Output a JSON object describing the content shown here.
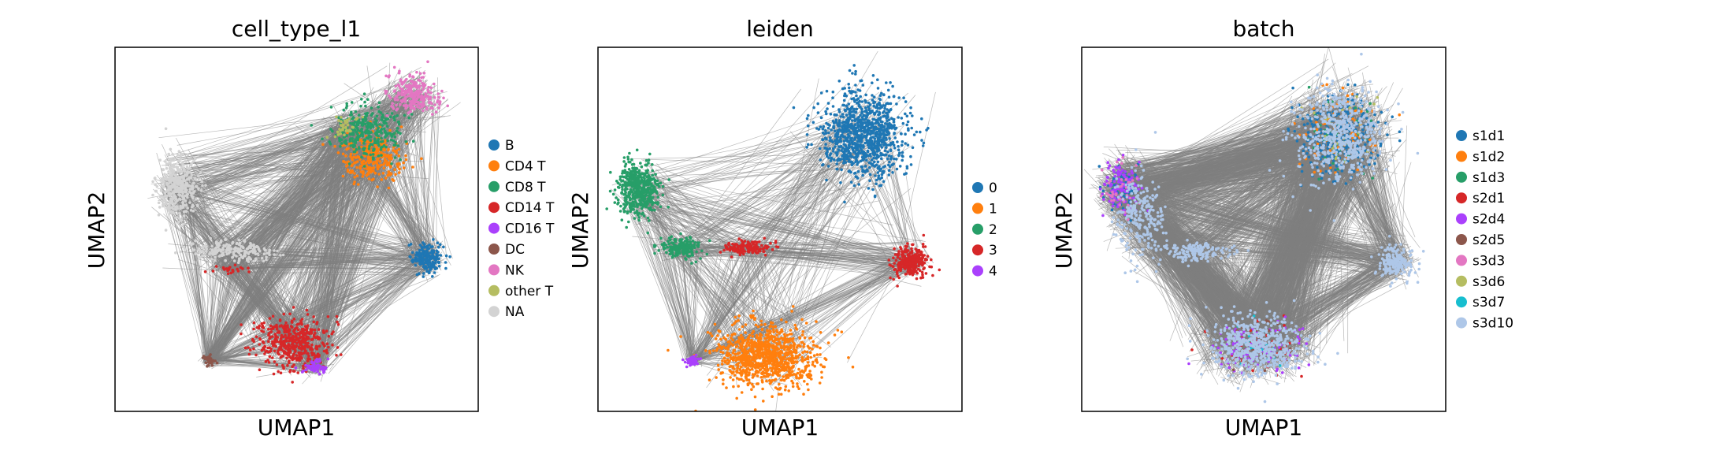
{
  "chart_data": [
    {
      "type": "scatter",
      "title": "cell_type_l1",
      "xlabel": "UMAP1",
      "ylabel": "UMAP2",
      "xlim": [
        0,
        10
      ],
      "ylim": [
        0,
        10
      ],
      "grid": false,
      "legend_position": "right",
      "series": [
        {
          "name": "B",
          "color": "#1f77b4",
          "clusters": [
            {
              "x": 8.6,
              "y": 4.2,
              "rx": 0.5,
              "ry": 0.45,
              "n": 200
            }
          ]
        },
        {
          "name": "CD4 T",
          "color": "#ff7f0e",
          "clusters": [
            {
              "x": 7.1,
              "y": 7.0,
              "rx": 0.9,
              "ry": 0.7,
              "n": 300
            }
          ]
        },
        {
          "name": "CD8 T",
          "color": "#279e68",
          "clusters": [
            {
              "x": 6.9,
              "y": 7.7,
              "rx": 1.1,
              "ry": 0.8,
              "n": 300
            }
          ]
        },
        {
          "name": "CD14 T",
          "color": "#d62728",
          "clusters": [
            {
              "x": 4.9,
              "y": 1.9,
              "rx": 1.1,
              "ry": 0.75,
              "n": 450
            },
            {
              "x": 3.2,
              "y": 3.9,
              "rx": 0.6,
              "ry": 0.1,
              "n": 25
            }
          ]
        },
        {
          "name": "CD16 T",
          "color": "#aa40fc",
          "clusters": [
            {
              "x": 5.5,
              "y": 1.2,
              "rx": 0.4,
              "ry": 0.2,
              "n": 60
            }
          ]
        },
        {
          "name": "DC",
          "color": "#8c564b",
          "clusters": [
            {
              "x": 2.6,
              "y": 1.4,
              "rx": 0.2,
              "ry": 0.15,
              "n": 40
            }
          ]
        },
        {
          "name": "NK",
          "color": "#e377c2",
          "clusters": [
            {
              "x": 8.2,
              "y": 8.7,
              "rx": 0.8,
              "ry": 0.6,
              "n": 250
            }
          ]
        },
        {
          "name": "other T",
          "color": "#b5bd61",
          "clusters": [
            {
              "x": 6.3,
              "y": 7.8,
              "rx": 0.4,
              "ry": 0.3,
              "n": 40
            }
          ]
        },
        {
          "name": "NA",
          "color": "#d3d3d3",
          "clusters": [
            {
              "x": 1.7,
              "y": 6.2,
              "rx": 0.6,
              "ry": 0.9,
              "n": 350
            },
            {
              "x": 3.2,
              "y": 4.4,
              "rx": 1.2,
              "ry": 0.3,
              "n": 200
            }
          ]
        }
      ]
    },
    {
      "type": "scatter",
      "title": "leiden",
      "xlabel": "UMAP1",
      "ylabel": "UMAP2",
      "xlim": [
        0,
        10
      ],
      "ylim": [
        0,
        10
      ],
      "grid": false,
      "legend_position": "right",
      "series": [
        {
          "name": "0",
          "color": "#1f77b4",
          "clusters": [
            {
              "x": 7.3,
              "y": 7.6,
              "rx": 1.3,
              "ry": 1.4,
              "n": 1000
            }
          ]
        },
        {
          "name": "1",
          "color": "#ff7f0e",
          "clusters": [
            {
              "x": 4.6,
              "y": 1.5,
              "rx": 1.5,
              "ry": 0.9,
              "n": 1000
            }
          ]
        },
        {
          "name": "2",
          "color": "#279e68",
          "clusters": [
            {
              "x": 1.1,
              "y": 6.1,
              "rx": 0.6,
              "ry": 0.8,
              "n": 500
            },
            {
              "x": 2.3,
              "y": 4.5,
              "rx": 0.7,
              "ry": 0.3,
              "n": 200
            }
          ]
        },
        {
          "name": "3",
          "color": "#d62728",
          "clusters": [
            {
              "x": 8.6,
              "y": 4.1,
              "rx": 0.5,
              "ry": 0.45,
              "n": 300
            },
            {
              "x": 4.1,
              "y": 4.5,
              "rx": 0.7,
              "ry": 0.2,
              "n": 150
            }
          ]
        },
        {
          "name": "4",
          "color": "#aa40fc",
          "clusters": [
            {
              "x": 2.6,
              "y": 1.4,
              "rx": 0.2,
              "ry": 0.15,
              "n": 60
            }
          ]
        }
      ]
    },
    {
      "type": "scatter",
      "title": "batch",
      "xlabel": "UMAP1",
      "ylabel": "UMAP2",
      "xlim": [
        0,
        10
      ],
      "ylim": [
        0,
        10
      ],
      "grid": false,
      "legend_position": "right",
      "series": [
        {
          "name": "s1d1",
          "color": "#1f77b4",
          "clusters": [
            {
              "x": 7.1,
              "y": 7.6,
              "rx": 1.2,
              "ry": 1.2,
              "n": 350
            },
            {
              "x": 1.1,
              "y": 6.1,
              "rx": 0.5,
              "ry": 0.6,
              "n": 100
            }
          ]
        },
        {
          "name": "s1d2",
          "color": "#ff7f0e",
          "clusters": [
            {
              "x": 7.1,
              "y": 7.6,
              "rx": 1.2,
              "ry": 1.2,
              "n": 80
            }
          ]
        },
        {
          "name": "s1d3",
          "color": "#279e68",
          "clusters": [
            {
              "x": 7.1,
              "y": 7.6,
              "rx": 1.2,
              "ry": 1.2,
              "n": 40
            }
          ]
        },
        {
          "name": "s2d1",
          "color": "#d62728",
          "clusters": [
            {
              "x": 4.8,
              "y": 1.8,
              "rx": 1.3,
              "ry": 0.8,
              "n": 60
            }
          ]
        },
        {
          "name": "s2d4",
          "color": "#aa40fc",
          "clusters": [
            {
              "x": 1.1,
              "y": 6.1,
              "rx": 0.6,
              "ry": 0.8,
              "n": 120
            },
            {
              "x": 4.8,
              "y": 1.8,
              "rx": 1.3,
              "ry": 0.8,
              "n": 120
            }
          ]
        },
        {
          "name": "s2d5",
          "color": "#8c564b",
          "clusters": [
            {
              "x": 4.8,
              "y": 1.8,
              "rx": 1.3,
              "ry": 0.8,
              "n": 30
            }
          ]
        },
        {
          "name": "s3d3",
          "color": "#e377c2",
          "clusters": [
            {
              "x": 1.1,
              "y": 6.1,
              "rx": 0.6,
              "ry": 0.8,
              "n": 40
            }
          ]
        },
        {
          "name": "s3d6",
          "color": "#b5bd61",
          "clusters": [
            {
              "x": 7.1,
              "y": 7.6,
              "rx": 1.2,
              "ry": 1.2,
              "n": 30
            }
          ]
        },
        {
          "name": "s3d7",
          "color": "#17becf",
          "clusters": [
            {
              "x": 4.8,
              "y": 1.8,
              "rx": 1.3,
              "ry": 0.8,
              "n": 20
            }
          ]
        },
        {
          "name": "s3d10",
          "color": "#aec7e8",
          "clusters": [
            {
              "x": 7.1,
              "y": 7.6,
              "rx": 1.3,
              "ry": 1.4,
              "n": 600
            },
            {
              "x": 4.8,
              "y": 1.8,
              "rx": 1.4,
              "ry": 0.9,
              "n": 600
            },
            {
              "x": 8.6,
              "y": 4.1,
              "rx": 0.5,
              "ry": 0.5,
              "n": 200
            },
            {
              "x": 1.6,
              "y": 5.3,
              "rx": 0.7,
              "ry": 1.2,
              "n": 250
            },
            {
              "x": 3.2,
              "y": 4.4,
              "rx": 1.1,
              "ry": 0.3,
              "n": 150
            }
          ]
        }
      ]
    }
  ]
}
